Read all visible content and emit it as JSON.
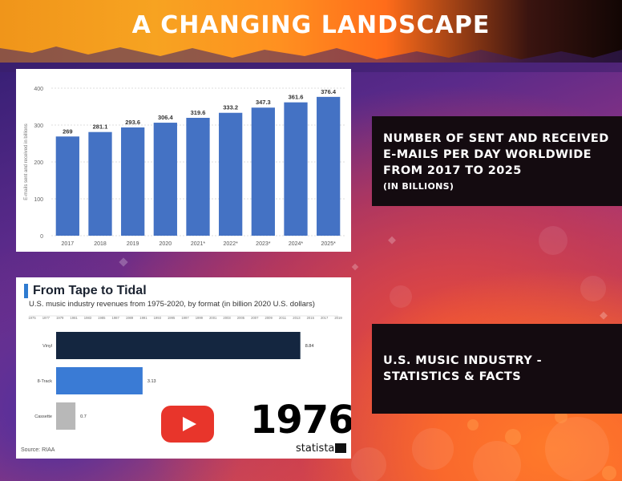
{
  "page": {
    "title": "A CHANGING LANDSCAPE"
  },
  "info_boxes": [
    {
      "line1": "NUMBER OF SENT AND RECEIVED E-MAILS PER DAY WORLDWIDE FROM 2017 TO 2025",
      "line2": "(IN BILLIONS)"
    },
    {
      "line1": "U.S. MUSIC INDUSTRY - STATISTICS & FACTS"
    }
  ],
  "chart_data": [
    {
      "type": "bar",
      "categories": [
        "2017",
        "2018",
        "2019",
        "2020",
        "2021*",
        "2022*",
        "2023*",
        "2024*",
        "2025*"
      ],
      "values": [
        269,
        281.1,
        293.6,
        306.4,
        319.6,
        333.2,
        347.3,
        361.6,
        376.4
      ],
      "value_labels": [
        "269",
        "281.1",
        "293.6",
        "306.4",
        "319.6",
        "333.2",
        "347.3",
        "361.6",
        "376.4"
      ],
      "ylabel": "E-mails sent and received in billions",
      "ylim": [
        0,
        400
      ],
      "yticks": [
        "0",
        "100",
        "200",
        "300",
        "400"
      ],
      "grid": true,
      "bar_color": "#4472c4"
    },
    {
      "type": "bar",
      "orientation": "horizontal",
      "title": "From Tape to Tidal",
      "subtitle": "U.S. music industry revenues from 1975-2020, by format (in billion 2020 U.S. dollars)",
      "source": "Source: RIAA",
      "xticks": [
        "1975",
        "1977",
        "1979",
        "1981",
        "1983",
        "1985",
        "1987",
        "1989",
        "1991",
        "1993",
        "1995",
        "1997",
        "1999",
        "2001",
        "2003",
        "2005",
        "2007",
        "2009",
        "2011",
        "2013",
        "2015",
        "2017",
        "2019"
      ],
      "categories": [
        "Vinyl",
        "8-Track",
        "Cassette"
      ],
      "values": [
        8.84,
        3.13,
        0.7
      ],
      "value_labels": [
        "8.84",
        "3.13",
        "0.7"
      ],
      "colors": [
        "#142640",
        "#3a7bd5",
        "#b8b8b8"
      ],
      "xlim": [
        0,
        9.4
      ]
    }
  ],
  "video": {
    "year": "1976",
    "brand": "statista",
    "play_color": "#e8352b"
  }
}
